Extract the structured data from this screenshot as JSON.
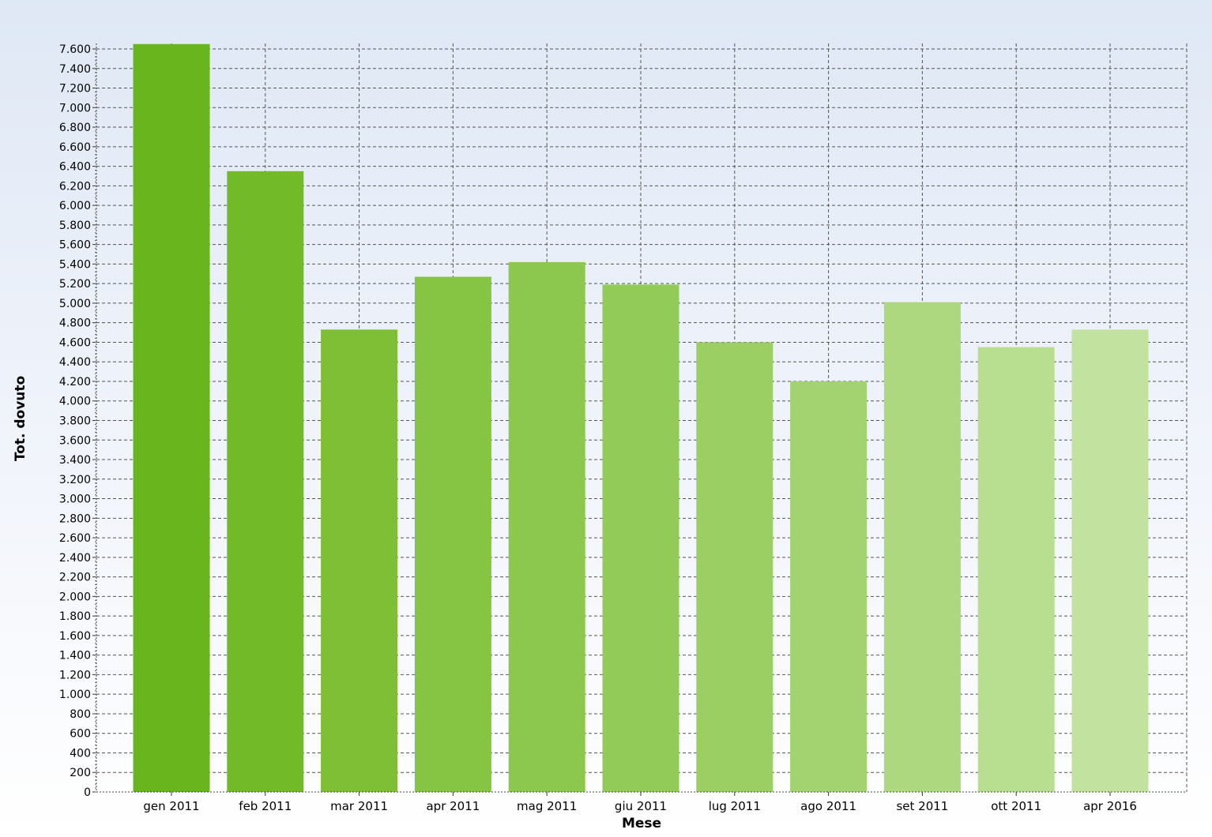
{
  "chart_data": {
    "type": "bar",
    "xlabel": "Mese",
    "ylabel": "Tot. dovuto",
    "ylim": [
      0,
      7600
    ],
    "ytick_step": 200,
    "grid": true,
    "categories": [
      "gen 2011",
      "feb 2011",
      "mar 2011",
      "apr 2011",
      "mag 2011",
      "giu 2011",
      "lug 2011",
      "ago 2011",
      "set 2011",
      "ott 2011",
      "apr 2016"
    ],
    "values": [
      7650,
      6350,
      4730,
      5270,
      5420,
      5190,
      4600,
      4200,
      5010,
      4550,
      4730
    ],
    "colors": [
      "#68b51e",
      "#73ba29",
      "#7ebf36",
      "#86c443",
      "#8cc84d",
      "#93cb58",
      "#9bcf64",
      "#a3d370",
      "#add87f",
      "#b8de8f",
      "#c2e3a0"
    ]
  }
}
